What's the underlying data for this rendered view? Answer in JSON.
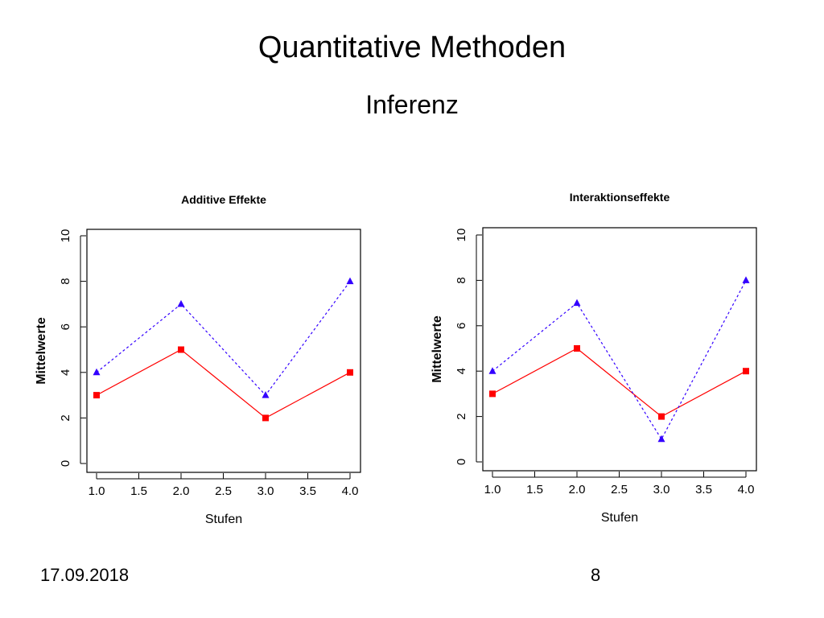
{
  "slide": {
    "title": "Quantitative Methoden",
    "subtitle": "Inferenz",
    "date": "17.09.2018",
    "page_number": "8"
  },
  "colors": {
    "series_solid": "#ff0000",
    "series_dashed": "#3300ff",
    "axis": "#000000"
  },
  "chart_data": [
    {
      "type": "line",
      "title": "Additive Effekte",
      "xlabel": "Stufen",
      "ylabel": "Mittelwerte",
      "xlim": [
        1.0,
        4.0
      ],
      "ylim": [
        0,
        10
      ],
      "xticks": [
        "1.0",
        "1.5",
        "2.0",
        "2.5",
        "3.0",
        "3.5",
        "4.0"
      ],
      "yticks": [
        "0",
        "2",
        "4",
        "6",
        "8",
        "10"
      ],
      "grid": false,
      "series": [
        {
          "x": [
            1,
            2,
            3,
            4
          ],
          "values": [
            3,
            5,
            2,
            4
          ],
          "line": "solid",
          "marker": "square",
          "color": "#ff0000"
        },
        {
          "x": [
            1,
            2,
            3,
            4
          ],
          "values": [
            4,
            7,
            3,
            8
          ],
          "line": "dashed",
          "marker": "triangle",
          "color": "#3300ff"
        }
      ]
    },
    {
      "type": "line",
      "title": "Interaktionseffekte",
      "xlabel": "Stufen",
      "ylabel": "Mittelwerte",
      "xlim": [
        1.0,
        4.0
      ],
      "ylim": [
        0,
        10
      ],
      "xticks": [
        "1.0",
        "1.5",
        "2.0",
        "2.5",
        "3.0",
        "3.5",
        "4.0"
      ],
      "yticks": [
        "0",
        "2",
        "4",
        "6",
        "8",
        "10"
      ],
      "grid": false,
      "series": [
        {
          "x": [
            1,
            2,
            3,
            4
          ],
          "values": [
            3,
            5,
            2,
            4
          ],
          "line": "solid",
          "marker": "square",
          "color": "#ff0000"
        },
        {
          "x": [
            1,
            2,
            3,
            4
          ],
          "values": [
            4,
            7,
            1,
            8
          ],
          "line": "dashed",
          "marker": "triangle",
          "color": "#3300ff"
        }
      ]
    }
  ]
}
